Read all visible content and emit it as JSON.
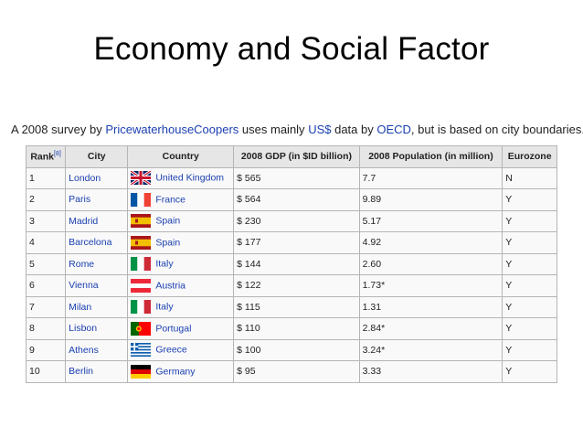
{
  "slide": {
    "title": "Economy and Social Factor"
  },
  "intro": {
    "part1": "A 2008 survey by ",
    "link1": "PricewaterhouseCoopers",
    "part2": " uses mainly ",
    "link2": "US$",
    "part3": " data by ",
    "link3": "OECD",
    "part4": ", but is based on city boundaries."
  },
  "table": {
    "headers": {
      "rank": "Rank",
      "rank_ref": "[8]",
      "city": "City",
      "country": "Country",
      "gdp": "2008 GDP (in $ID billion)",
      "population": "2008 Population (in million)",
      "eurozone": "Eurozone"
    },
    "rows": [
      {
        "rank": "1",
        "city": "London",
        "country": "United Kingdom",
        "flag": "uk",
        "gdp": "$ 565",
        "population": "7.7",
        "eurozone": "N"
      },
      {
        "rank": "2",
        "city": "Paris",
        "country": "France",
        "flag": "france",
        "gdp": "$ 564",
        "population": "9.89",
        "eurozone": "Y"
      },
      {
        "rank": "3",
        "city": "Madrid",
        "country": "Spain",
        "flag": "spain",
        "gdp": "$ 230",
        "population": "5.17",
        "eurozone": "Y"
      },
      {
        "rank": "4",
        "city": "Barcelona",
        "country": "Spain",
        "flag": "spain",
        "gdp": "$ 177",
        "population": "4.92",
        "eurozone": "Y"
      },
      {
        "rank": "5",
        "city": "Rome",
        "country": "Italy",
        "flag": "italy",
        "gdp": "$ 144",
        "population": "2.60",
        "eurozone": "Y"
      },
      {
        "rank": "6",
        "city": "Vienna",
        "country": "Austria",
        "flag": "austria",
        "gdp": "$ 122",
        "population": "1.73*",
        "eurozone": "Y"
      },
      {
        "rank": "7",
        "city": "Milan",
        "country": "Italy",
        "flag": "italy",
        "gdp": "$ 115",
        "population": "1.31",
        "eurozone": "Y"
      },
      {
        "rank": "8",
        "city": "Lisbon",
        "country": "Portugal",
        "flag": "portugal",
        "gdp": "$ 110",
        "population": "2.84*",
        "eurozone": "Y"
      },
      {
        "rank": "9",
        "city": "Athens",
        "country": "Greece",
        "flag": "greece",
        "gdp": "$ 100",
        "population": "3.24*",
        "eurozone": "Y"
      },
      {
        "rank": "10",
        "city": "Berlin",
        "country": "Germany",
        "flag": "germany",
        "gdp": "$ 95",
        "population": "3.33",
        "eurozone": "Y"
      }
    ]
  },
  "colors": {
    "link": "#1a3fb0",
    "header_bg": "#e6e6e6",
    "border": "#b5b5b5"
  }
}
